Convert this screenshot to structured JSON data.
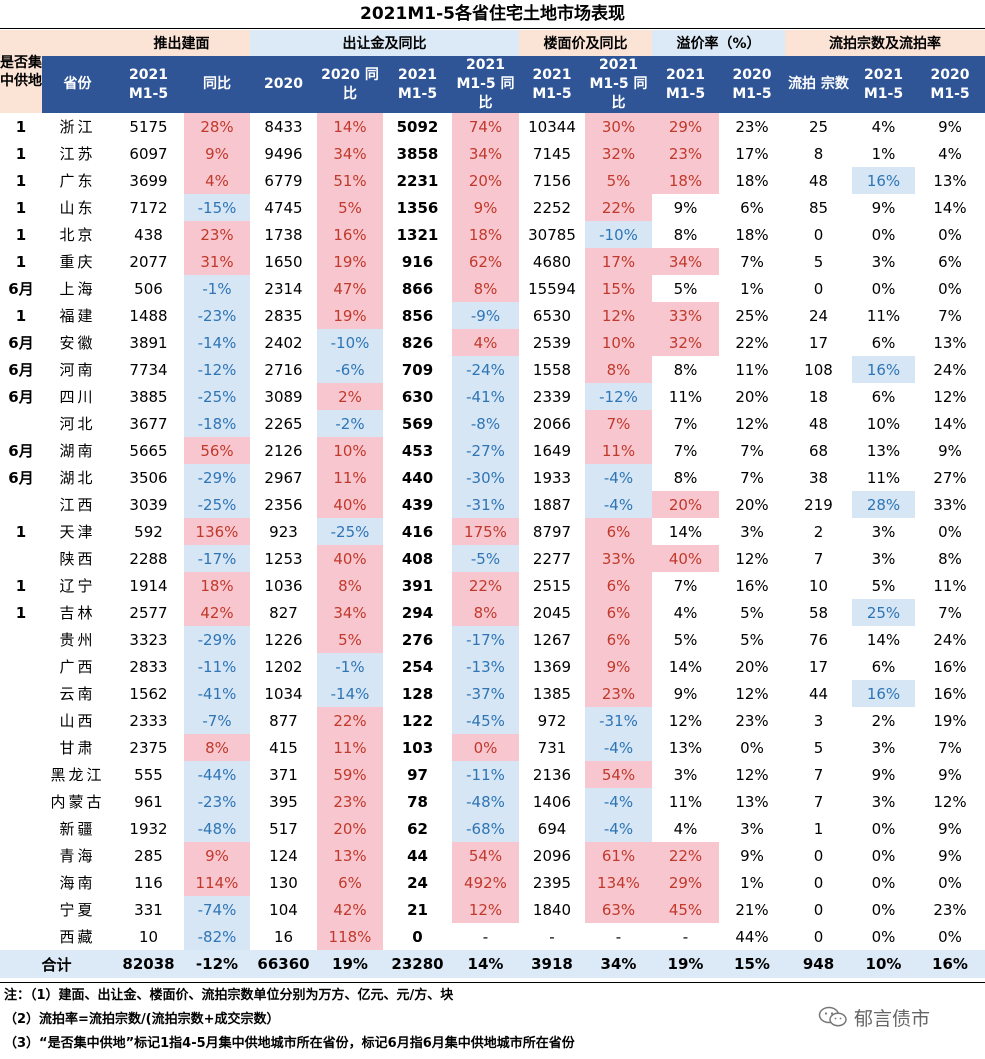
{
  "title": "2021M1-5各省住宅土地市场表现",
  "headers": {
    "col0": "是否集中供地",
    "group_supply": "推出建面",
    "group_transfer": "出让金及同比",
    "group_floor": "楼面价及同比",
    "group_premium": "溢价率（%）",
    "group_fail": "流拍宗数及流拍率",
    "province": "省份",
    "supply_2021": "2021 M1-5",
    "supply_yoy": "同比",
    "transfer_2020": "2020",
    "transfer_2020_yoy": "2020 同比",
    "transfer_2021": "2021 M1-5",
    "transfer_2021_yoy": "2021 M1-5 同比",
    "floor_2021": "2021 M1-5",
    "floor_yoy": "2021 M1-5 同比",
    "premium_2021": "2021 M1-5",
    "premium_2020": "2020 M1-5",
    "fail_count": "流拍 宗数",
    "fail_2021": "2021 M1-5",
    "fail_2020": "2020 M1-5"
  },
  "rows": [
    [
      "1",
      "浙江",
      "5175",
      "28%",
      "8433",
      "14%",
      "5092",
      "74%",
      "10344",
      "30%",
      "29%",
      "23%",
      "25",
      "4%",
      "9%"
    ],
    [
      "1",
      "江苏",
      "6097",
      "9%",
      "9496",
      "34%",
      "3858",
      "34%",
      "7145",
      "32%",
      "23%",
      "17%",
      "8",
      "1%",
      "4%"
    ],
    [
      "1",
      "广东",
      "3699",
      "4%",
      "6779",
      "51%",
      "2231",
      "20%",
      "7156",
      "5%",
      "18%",
      "18%",
      "48",
      "16%",
      "13%"
    ],
    [
      "1",
      "山东",
      "7172",
      "-15%",
      "4745",
      "5%",
      "1356",
      "9%",
      "2252",
      "22%",
      "9%",
      "6%",
      "85",
      "9%",
      "14%"
    ],
    [
      "1",
      "北京",
      "438",
      "23%",
      "1738",
      "16%",
      "1321",
      "18%",
      "30785",
      "-10%",
      "8%",
      "18%",
      "0",
      "0%",
      "0%"
    ],
    [
      "1",
      "重庆",
      "2077",
      "31%",
      "1650",
      "19%",
      "916",
      "62%",
      "4680",
      "17%",
      "34%",
      "7%",
      "5",
      "3%",
      "6%"
    ],
    [
      "6月",
      "上海",
      "506",
      "-1%",
      "2314",
      "47%",
      "866",
      "8%",
      "15594",
      "15%",
      "5%",
      "1%",
      "0",
      "0%",
      "0%"
    ],
    [
      "1",
      "福建",
      "1488",
      "-23%",
      "2835",
      "19%",
      "856",
      "-9%",
      "6530",
      "12%",
      "33%",
      "25%",
      "24",
      "11%",
      "7%"
    ],
    [
      "6月",
      "安徽",
      "3891",
      "-14%",
      "2402",
      "-10%",
      "826",
      "4%",
      "2539",
      "10%",
      "32%",
      "22%",
      "17",
      "6%",
      "13%"
    ],
    [
      "6月",
      "河南",
      "7734",
      "-12%",
      "2716",
      "-6%",
      "709",
      "-24%",
      "1558",
      "8%",
      "8%",
      "11%",
      "108",
      "16%",
      "24%"
    ],
    [
      "6月",
      "四川",
      "3885",
      "-25%",
      "3089",
      "2%",
      "630",
      "-41%",
      "2339",
      "-12%",
      "11%",
      "20%",
      "18",
      "6%",
      "12%"
    ],
    [
      "",
      "河北",
      "3677",
      "-18%",
      "2265",
      "-2%",
      "569",
      "-8%",
      "2066",
      "7%",
      "7%",
      "12%",
      "48",
      "10%",
      "14%"
    ],
    [
      "6月",
      "湖南",
      "5665",
      "56%",
      "2126",
      "10%",
      "453",
      "-27%",
      "1649",
      "11%",
      "7%",
      "7%",
      "68",
      "13%",
      "9%"
    ],
    [
      "6月",
      "湖北",
      "3506",
      "-29%",
      "2967",
      "11%",
      "440",
      "-30%",
      "1933",
      "-4%",
      "8%",
      "7%",
      "38",
      "11%",
      "27%"
    ],
    [
      "",
      "江西",
      "3039",
      "-25%",
      "2356",
      "40%",
      "439",
      "-31%",
      "1887",
      "-4%",
      "20%",
      "20%",
      "219",
      "28%",
      "33%"
    ],
    [
      "1",
      "天津",
      "592",
      "136%",
      "923",
      "-25%",
      "416",
      "175%",
      "8797",
      "6%",
      "14%",
      "3%",
      "2",
      "3%",
      "0%"
    ],
    [
      "",
      "陕西",
      "2288",
      "-17%",
      "1253",
      "40%",
      "408",
      "-5%",
      "2277",
      "33%",
      "40%",
      "12%",
      "7",
      "3%",
      "8%"
    ],
    [
      "1",
      "辽宁",
      "1914",
      "18%",
      "1036",
      "8%",
      "391",
      "22%",
      "2515",
      "6%",
      "7%",
      "16%",
      "10",
      "5%",
      "11%"
    ],
    [
      "1",
      "吉林",
      "2577",
      "42%",
      "827",
      "34%",
      "294",
      "8%",
      "2045",
      "6%",
      "4%",
      "5%",
      "58",
      "25%",
      "7%"
    ],
    [
      "",
      "贵州",
      "3323",
      "-29%",
      "1226",
      "5%",
      "276",
      "-17%",
      "1267",
      "6%",
      "5%",
      "5%",
      "76",
      "14%",
      "24%"
    ],
    [
      "",
      "广西",
      "2833",
      "-11%",
      "1202",
      "-1%",
      "254",
      "-13%",
      "1369",
      "9%",
      "14%",
      "20%",
      "17",
      "6%",
      "16%"
    ],
    [
      "",
      "云南",
      "1562",
      "-41%",
      "1034",
      "-14%",
      "128",
      "-37%",
      "1385",
      "23%",
      "9%",
      "12%",
      "44",
      "16%",
      "16%"
    ],
    [
      "",
      "山西",
      "2333",
      "-7%",
      "877",
      "22%",
      "122",
      "-45%",
      "972",
      "-31%",
      "12%",
      "23%",
      "3",
      "2%",
      "19%"
    ],
    [
      "",
      "甘肃",
      "2375",
      "8%",
      "415",
      "11%",
      "103",
      "0%",
      "731",
      "-4%",
      "13%",
      "0%",
      "5",
      "3%",
      "7%"
    ],
    [
      "",
      "黑龙江",
      "555",
      "-44%",
      "371",
      "59%",
      "97",
      "-11%",
      "2136",
      "54%",
      "3%",
      "12%",
      "7",
      "9%",
      "9%"
    ],
    [
      "",
      "内蒙古",
      "961",
      "-23%",
      "395",
      "23%",
      "78",
      "-48%",
      "1406",
      "-4%",
      "11%",
      "13%",
      "7",
      "3%",
      "12%"
    ],
    [
      "",
      "新疆",
      "1932",
      "-48%",
      "517",
      "20%",
      "62",
      "-68%",
      "694",
      "-4%",
      "4%",
      "3%",
      "1",
      "0%",
      "9%"
    ],
    [
      "",
      "青海",
      "285",
      "9%",
      "124",
      "13%",
      "44",
      "54%",
      "2096",
      "61%",
      "22%",
      "9%",
      "0",
      "0%",
      "9%"
    ],
    [
      "",
      "海南",
      "116",
      "114%",
      "130",
      "6%",
      "24",
      "492%",
      "2395",
      "134%",
      "29%",
      "1%",
      "0",
      "0%",
      "0%"
    ],
    [
      "",
      "宁夏",
      "331",
      "-74%",
      "104",
      "42%",
      "21",
      "12%",
      "1840",
      "63%",
      "45%",
      "21%",
      "0",
      "0%",
      "23%"
    ],
    [
      "",
      "西藏",
      "10",
      "-82%",
      "16",
      "118%",
      "0",
      "-",
      "-",
      "-",
      "-",
      "44%",
      "0",
      "0%",
      "0%"
    ]
  ],
  "total": [
    "合计",
    "82038",
    "-12%",
    "66360",
    "19%",
    "23280",
    "14%",
    "3918",
    "34%",
    "19%",
    "15%",
    "948",
    "10%",
    "16%"
  ],
  "notes": [
    "注：（1）建面、出让金、楼面价、流拍宗数单位分别为万方、亿元、元/方、块",
    "（2）流拍率=流拍宗数/(流拍宗数+成交宗数）",
    "（3）“是否集中供地”标记1指4-5月集中供地城市所在省份，标记6月指6月集中供地城市所在省份"
  ],
  "watermark": "郁言债市",
  "colors": {
    "positive_bg": "#f8c6cf",
    "negative_bg": "#d6e6f4",
    "header_blue": "#2f5597",
    "header_salmon": "#fbe3d6",
    "header_lightblue": "#dce9f6"
  }
}
